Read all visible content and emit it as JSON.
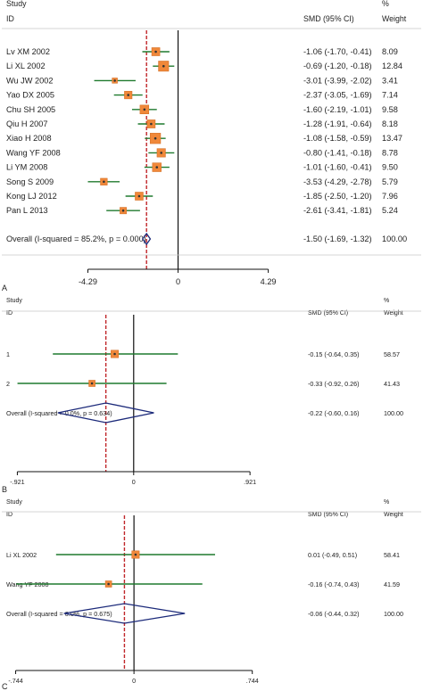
{
  "chart_data": [
    {
      "type": "forest",
      "panel_label": "A",
      "header": {
        "study_line1": "Study",
        "study_line2": "ID",
        "effect_col": "SMD (95% CI)",
        "pct_line1": "%",
        "pct_line2": "Weight"
      },
      "x_ticks": [
        {
          "value": -4.29,
          "label": "-4.29"
        },
        {
          "value": 0,
          "label": "0"
        },
        {
          "value": 4.29,
          "label": "4.29"
        }
      ],
      "xlim": [
        -8.3,
        3.5
      ],
      "rows": [
        {
          "study": "Lv XM 2002",
          "smd": -1.06,
          "lo": -1.7,
          "hi": -0.41,
          "ci_text": "-1.06 (-1.70, -0.41)",
          "weight": 8.09,
          "weight_text": "8.09"
        },
        {
          "study": "Li XL 2002",
          "smd": -0.69,
          "lo": -1.2,
          "hi": -0.18,
          "ci_text": "-0.69 (-1.20, -0.18)",
          "weight": 12.84,
          "weight_text": "12.84"
        },
        {
          "study": "Wu JW 2002",
          "smd": -3.01,
          "lo": -3.99,
          "hi": -2.02,
          "ci_text": "-3.01 (-3.99, -2.02)",
          "weight": 3.41,
          "weight_text": "3.41"
        },
        {
          "study": "Yao DX 2005",
          "smd": -2.37,
          "lo": -3.05,
          "hi": -1.69,
          "ci_text": "-2.37 (-3.05, -1.69)",
          "weight": 7.14,
          "weight_text": "7.14"
        },
        {
          "study": "Chu SH 2005",
          "smd": -1.6,
          "lo": -2.19,
          "hi": -1.01,
          "ci_text": "-1.60 (-2.19, -1.01)",
          "weight": 9.58,
          "weight_text": "9.58"
        },
        {
          "study": "Qiu H 2007",
          "smd": -1.28,
          "lo": -1.91,
          "hi": -0.64,
          "ci_text": "-1.28 (-1.91, -0.64)",
          "weight": 8.18,
          "weight_text": "8.18"
        },
        {
          "study": "Xiao H 2008",
          "smd": -1.08,
          "lo": -1.58,
          "hi": -0.59,
          "ci_text": "-1.08 (-1.58, -0.59)",
          "weight": 13.47,
          "weight_text": "13.47"
        },
        {
          "study": "Wang YF 2008",
          "smd": -0.8,
          "lo": -1.41,
          "hi": -0.18,
          "ci_text": "-0.80 (-1.41, -0.18)",
          "weight": 8.78,
          "weight_text": "8.78"
        },
        {
          "study": "Li YM 2008",
          "smd": -1.01,
          "lo": -1.6,
          "hi": -0.41,
          "ci_text": "-1.01 (-1.60, -0.41)",
          "weight": 9.5,
          "weight_text": "9.50"
        },
        {
          "study": "Song S 2009",
          "smd": -3.53,
          "lo": -4.29,
          "hi": -2.78,
          "ci_text": "-3.53 (-4.29, -2.78)",
          "weight": 5.79,
          "weight_text": "5.79"
        },
        {
          "study": "Kong LJ 2012",
          "smd": -1.85,
          "lo": -2.5,
          "hi": -1.2,
          "ci_text": "-1.85 (-2.50, -1.20)",
          "weight": 7.96,
          "weight_text": "7.96"
        },
        {
          "study": "Pan L 2013",
          "smd": -2.61,
          "lo": -3.41,
          "hi": -1.81,
          "ci_text": "-2.61 (-3.41, -1.81)",
          "weight": 5.24,
          "weight_text": "5.24"
        }
      ],
      "overall": {
        "label": "Overall  (I-squared = 85.2%, p = 0.000)",
        "smd": -1.5,
        "lo": -1.69,
        "hi": -1.32,
        "ci_text": "-1.50 (-1.69, -1.32)",
        "weight_text": "100.00"
      }
    },
    {
      "type": "forest",
      "panel_label": "B",
      "header": {
        "study_line1": "Study",
        "study_line2": "ID",
        "effect_col": "SMD (95% CI)",
        "pct_line1": "%",
        "pct_line2": "Weight"
      },
      "x_ticks": [
        {
          "value": -0.921,
          "label": "-.921"
        },
        {
          "value": 0,
          "label": "0"
        },
        {
          "value": 0.921,
          "label": ".921"
        }
      ],
      "xlim": [
        -1.03,
        0.92
      ],
      "rows": [
        {
          "study": "1",
          "smd": -0.15,
          "lo": -0.64,
          "hi": 0.35,
          "ci_text": "-0.15 (-0.64, 0.35)",
          "weight": 58.57,
          "weight_text": "58.57"
        },
        {
          "study": "2",
          "smd": -0.33,
          "lo": -0.92,
          "hi": 0.26,
          "ci_text": "-0.33 (-0.92, 0.26)",
          "weight": 41.43,
          "weight_text": "41.43"
        }
      ],
      "overall": {
        "label": "Overall  (I-squared = 0.0%, p = 0.634)",
        "smd": -0.22,
        "lo": -0.6,
        "hi": 0.16,
        "ci_text": "-0.22 (-0.60, 0.16)",
        "weight_text": "100.00"
      }
    },
    {
      "type": "forest",
      "panel_label": "C",
      "header": {
        "study_line1": "Study",
        "study_line2": "ID",
        "effect_col": "SMD (95% CI)",
        "pct_line1": "%",
        "pct_line2": "Weight"
      },
      "x_ticks": [
        {
          "value": -0.744,
          "label": "-.744"
        },
        {
          "value": 0,
          "label": "0"
        },
        {
          "value": 0.744,
          "label": ".744"
        }
      ],
      "xlim": [
        -0.82,
        0.74
      ],
      "rows": [
        {
          "study": "Li XL 2002",
          "smd": 0.01,
          "lo": -0.49,
          "hi": 0.51,
          "ci_text": "0.01 (-0.49, 0.51)",
          "weight": 58.41,
          "weight_text": "58.41"
        },
        {
          "study": "Wang YF 2008",
          "smd": -0.16,
          "lo": -0.74,
          "hi": 0.43,
          "ci_text": "-0.16 (-0.74, 0.43)",
          "weight": 41.59,
          "weight_text": "41.59"
        }
      ],
      "overall": {
        "label": "Overall  (I-squared = 0.0%, p = 0.675)",
        "smd": -0.06,
        "lo": -0.44,
        "hi": 0.32,
        "ci_text": "-0.06 (-0.44, 0.32)",
        "weight_text": "100.00"
      }
    }
  ],
  "colors": {
    "box": "#f0883a",
    "box_edge": "#d06a1f",
    "ci_line": "#1f7a2e",
    "null_line": "#111111",
    "overall_line": "#c0262a",
    "diamond": "#1c2a7a",
    "separator": "#c8c8c8",
    "text": "#222222"
  }
}
